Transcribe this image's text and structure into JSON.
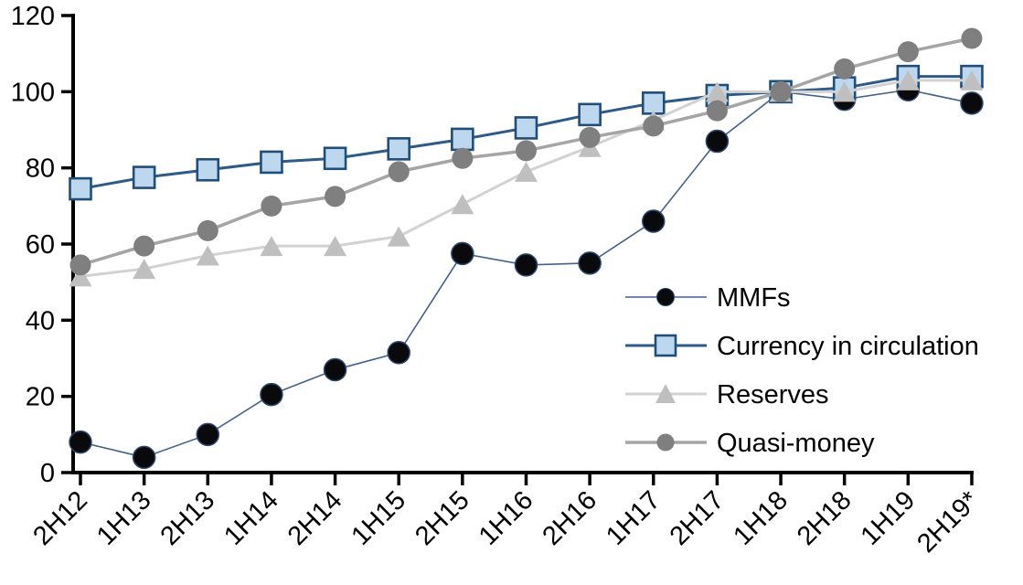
{
  "chart_data": {
    "type": "line",
    "title": "",
    "categories": [
      "2H12",
      "1H13",
      "2H13",
      "1H14",
      "2H14",
      "1H15",
      "2H15",
      "1H16",
      "2H16",
      "1H17",
      "2H17",
      "1H18",
      "2H18",
      "1H19",
      "2H19*"
    ],
    "series": [
      {
        "name": "MMFs",
        "marker": "circle",
        "marker_fill": "#0a0a0c",
        "marker_stroke": "#2c4770",
        "marker_stroke_width": 1.5,
        "marker_size": 24,
        "line_color": "#44618e",
        "line_width": 1.6,
        "values": [
          8,
          4,
          10,
          20.5,
          27,
          31.5,
          57.5,
          54.5,
          55,
          66,
          87,
          100,
          98,
          100.5,
          97
        ]
      },
      {
        "name": "Currency in circulation",
        "marker": "square",
        "marker_fill": "#bdd7ee",
        "marker_stroke": "#1f4e79",
        "marker_stroke_width": 2.6,
        "marker_size": 23,
        "line_color": "#2e5a87",
        "line_width": 3,
        "values": [
          74.5,
          77.5,
          79.5,
          81.5,
          82.5,
          85,
          87.5,
          90.5,
          94,
          97,
          99,
          100,
          101,
          104,
          104
        ]
      },
      {
        "name": "Reserves",
        "marker": "triangle",
        "marker_fill": "#bfbfbf",
        "marker_stroke": "none",
        "marker_stroke_width": 0,
        "marker_size": 25,
        "line_color": "#d2d2d2",
        "line_width": 3,
        "values": [
          51.5,
          53.5,
          57,
          59.5,
          59.5,
          62,
          70.5,
          79,
          85.5,
          92.5,
          100,
          100,
          100,
          103,
          103
        ]
      },
      {
        "name": "Quasi-money",
        "marker": "circle",
        "marker_fill": "#7f7f7f",
        "marker_stroke": "none",
        "marker_stroke_width": 0,
        "marker_size": 23,
        "line_color": "#a5a5a5",
        "line_width": 3.5,
        "values": [
          54.5,
          59.5,
          63.5,
          70,
          72.5,
          79,
          82.5,
          84.5,
          88,
          91,
          95,
          100,
          106,
          110.5,
          114
        ]
      }
    ],
    "xlabel": "",
    "ylabel": "",
    "ylim": [
      0,
      120
    ],
    "yticks": [
      0,
      20,
      40,
      60,
      80,
      100,
      120
    ],
    "grid": "off",
    "legend_position": "inside-right",
    "background": "#ffffff",
    "axis_color": "#000000"
  }
}
